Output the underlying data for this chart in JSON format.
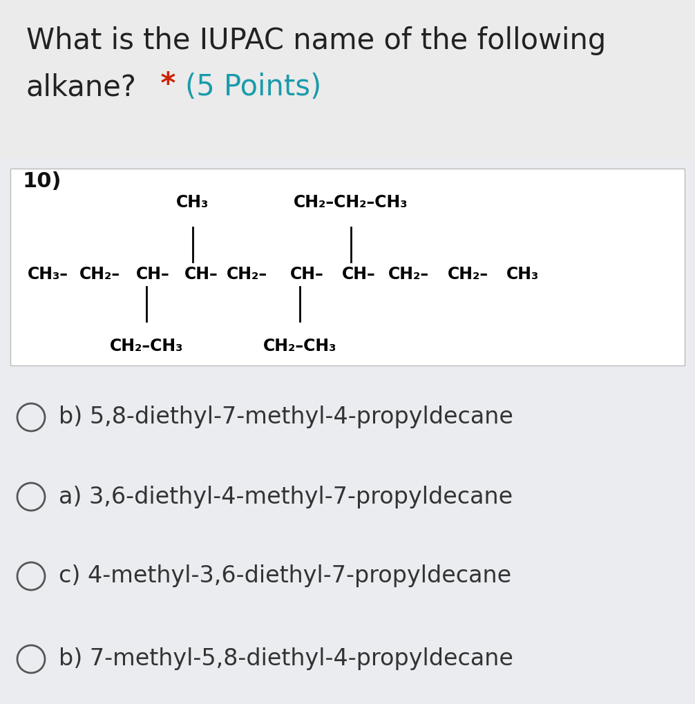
{
  "title_line1": "What is the IUPAC name of the following",
  "title_line2": "alkane?",
  "asterisk": " * ",
  "points": "(5 Points)",
  "question_num": "10)",
  "bg_top": "#ebebeb",
  "bg_box": "#ffffff",
  "bg_options": "#eaecf0",
  "title_color": "#222222",
  "asterisk_color": "#cc2200",
  "points_color": "#1a9baa",
  "options_color": "#333333",
  "circle_color": "#555555",
  "options": [
    "b) 5,8-diethyl-7-methyl-4-propyldecane",
    "a) 3,6-diethyl-4-methyl-7-propyldecane",
    "c) 4-methyl-3,6-diethyl-7-propyldecane",
    "b) 7-methyl-5,8-diethyl-4-propyldecane"
  ],
  "title_fontsize": 30,
  "option_fontsize": 24,
  "struct_fontsize": 17,
  "struct_fw": "bold"
}
